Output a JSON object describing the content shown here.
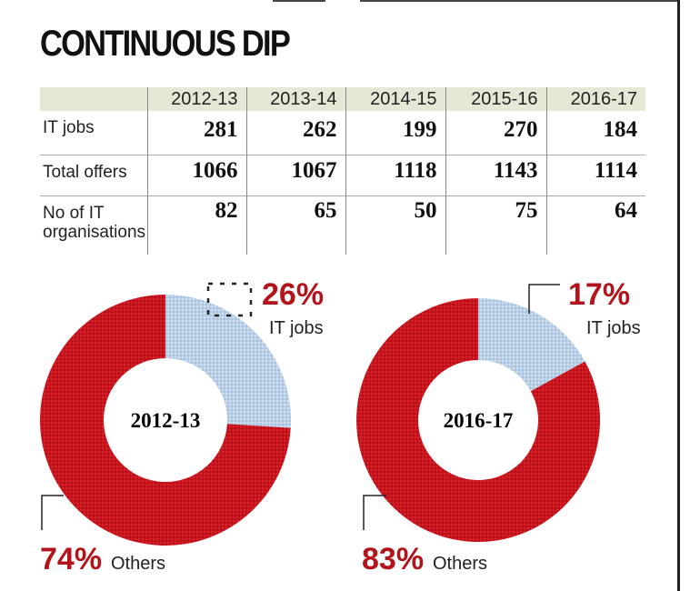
{
  "title": "CONTINUOUS DIP",
  "table": {
    "columns": [
      "2012-13",
      "2013-14",
      "2014-15",
      "2015-16",
      "2016-17"
    ],
    "rows": [
      {
        "label": "IT jobs",
        "values": [
          "281",
          "262",
          "199",
          "270",
          "184"
        ]
      },
      {
        "label": "Total offers",
        "values": [
          "1066",
          "1067",
          "1118",
          "1143",
          "1114"
        ]
      },
      {
        "label": "No of IT organisations",
        "values": [
          "82",
          "65",
          "50",
          "75",
          "64"
        ]
      }
    ]
  },
  "colors": {
    "others": "#c8151d",
    "it_jobs": "#b8cfe6",
    "accent_text": "#b3141c"
  },
  "chart_data": [
    {
      "type": "pie",
      "center_label": "2012-13",
      "labels": [
        "IT jobs",
        "Others"
      ],
      "values": [
        26,
        74
      ],
      "value_labels": [
        "26%",
        "74%"
      ]
    },
    {
      "type": "pie",
      "center_label": "2016-17",
      "labels": [
        "IT jobs",
        "Others"
      ],
      "values": [
        17,
        83
      ],
      "value_labels": [
        "17%",
        "83%"
      ]
    }
  ]
}
